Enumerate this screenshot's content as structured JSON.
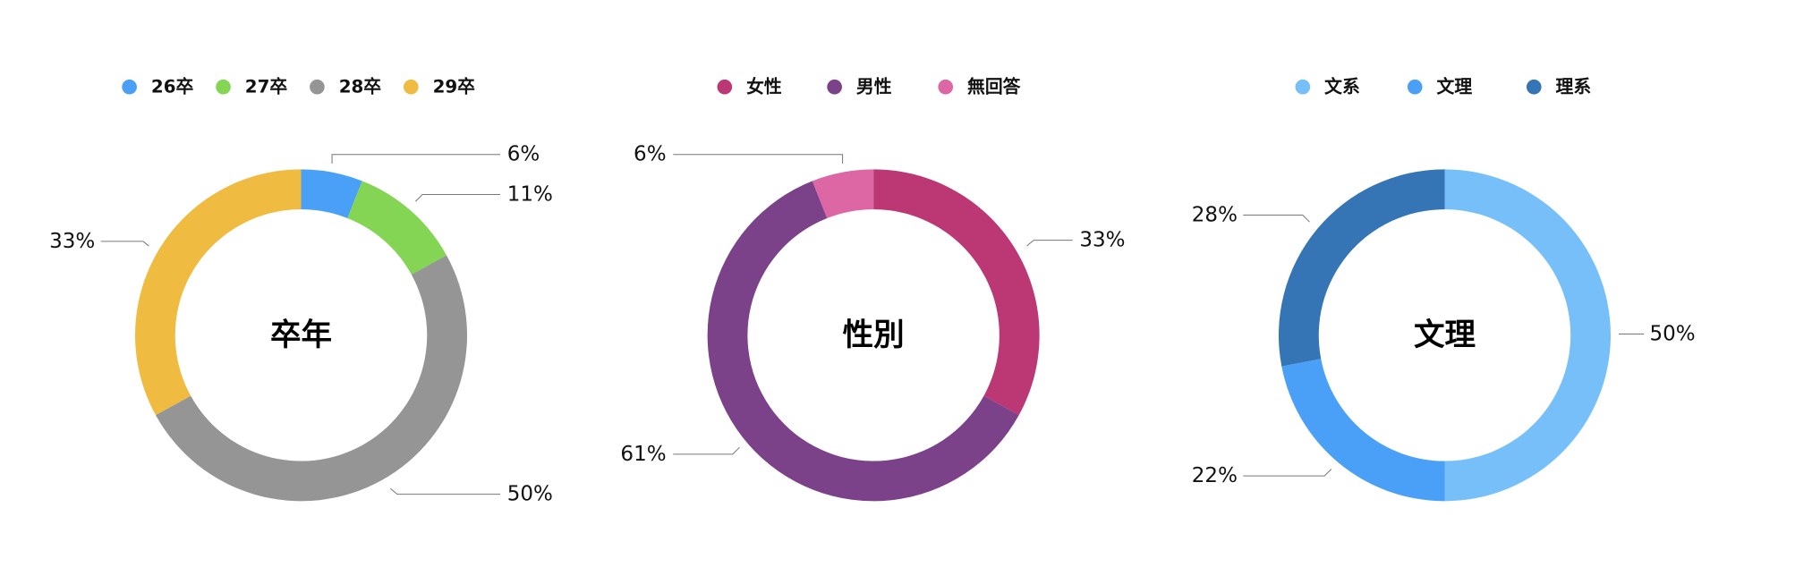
{
  "chart_data": [
    {
      "type": "pie",
      "variant": "donut",
      "title": "卒年",
      "categories": [
        "26卒",
        "27卒",
        "28卒",
        "29卒"
      ],
      "values": [
        6,
        11,
        50,
        33
      ],
      "labels": [
        "6%",
        "11%",
        "50%",
        "33%"
      ],
      "colors": [
        "#4aa0f7",
        "#84d554",
        "#959595",
        "#efbc41"
      ],
      "legend_position": "top"
    },
    {
      "type": "pie",
      "variant": "donut",
      "title": "性別",
      "categories": [
        "女性",
        "男性",
        "無回答"
      ],
      "values": [
        33,
        61,
        6
      ],
      "labels": [
        "33%",
        "61%",
        "6%"
      ],
      "colors": [
        "#bb3874",
        "#7b4189",
        "#dd66a4"
      ],
      "legend_position": "top"
    },
    {
      "type": "pie",
      "variant": "donut",
      "title": "文理",
      "categories": [
        "文系",
        "文理",
        "理系"
      ],
      "values": [
        50,
        22,
        28
      ],
      "labels": [
        "50%",
        "22%",
        "28%"
      ],
      "colors": [
        "#76bff8",
        "#4aa0f7",
        "#3574b5"
      ],
      "legend_position": "top"
    }
  ]
}
